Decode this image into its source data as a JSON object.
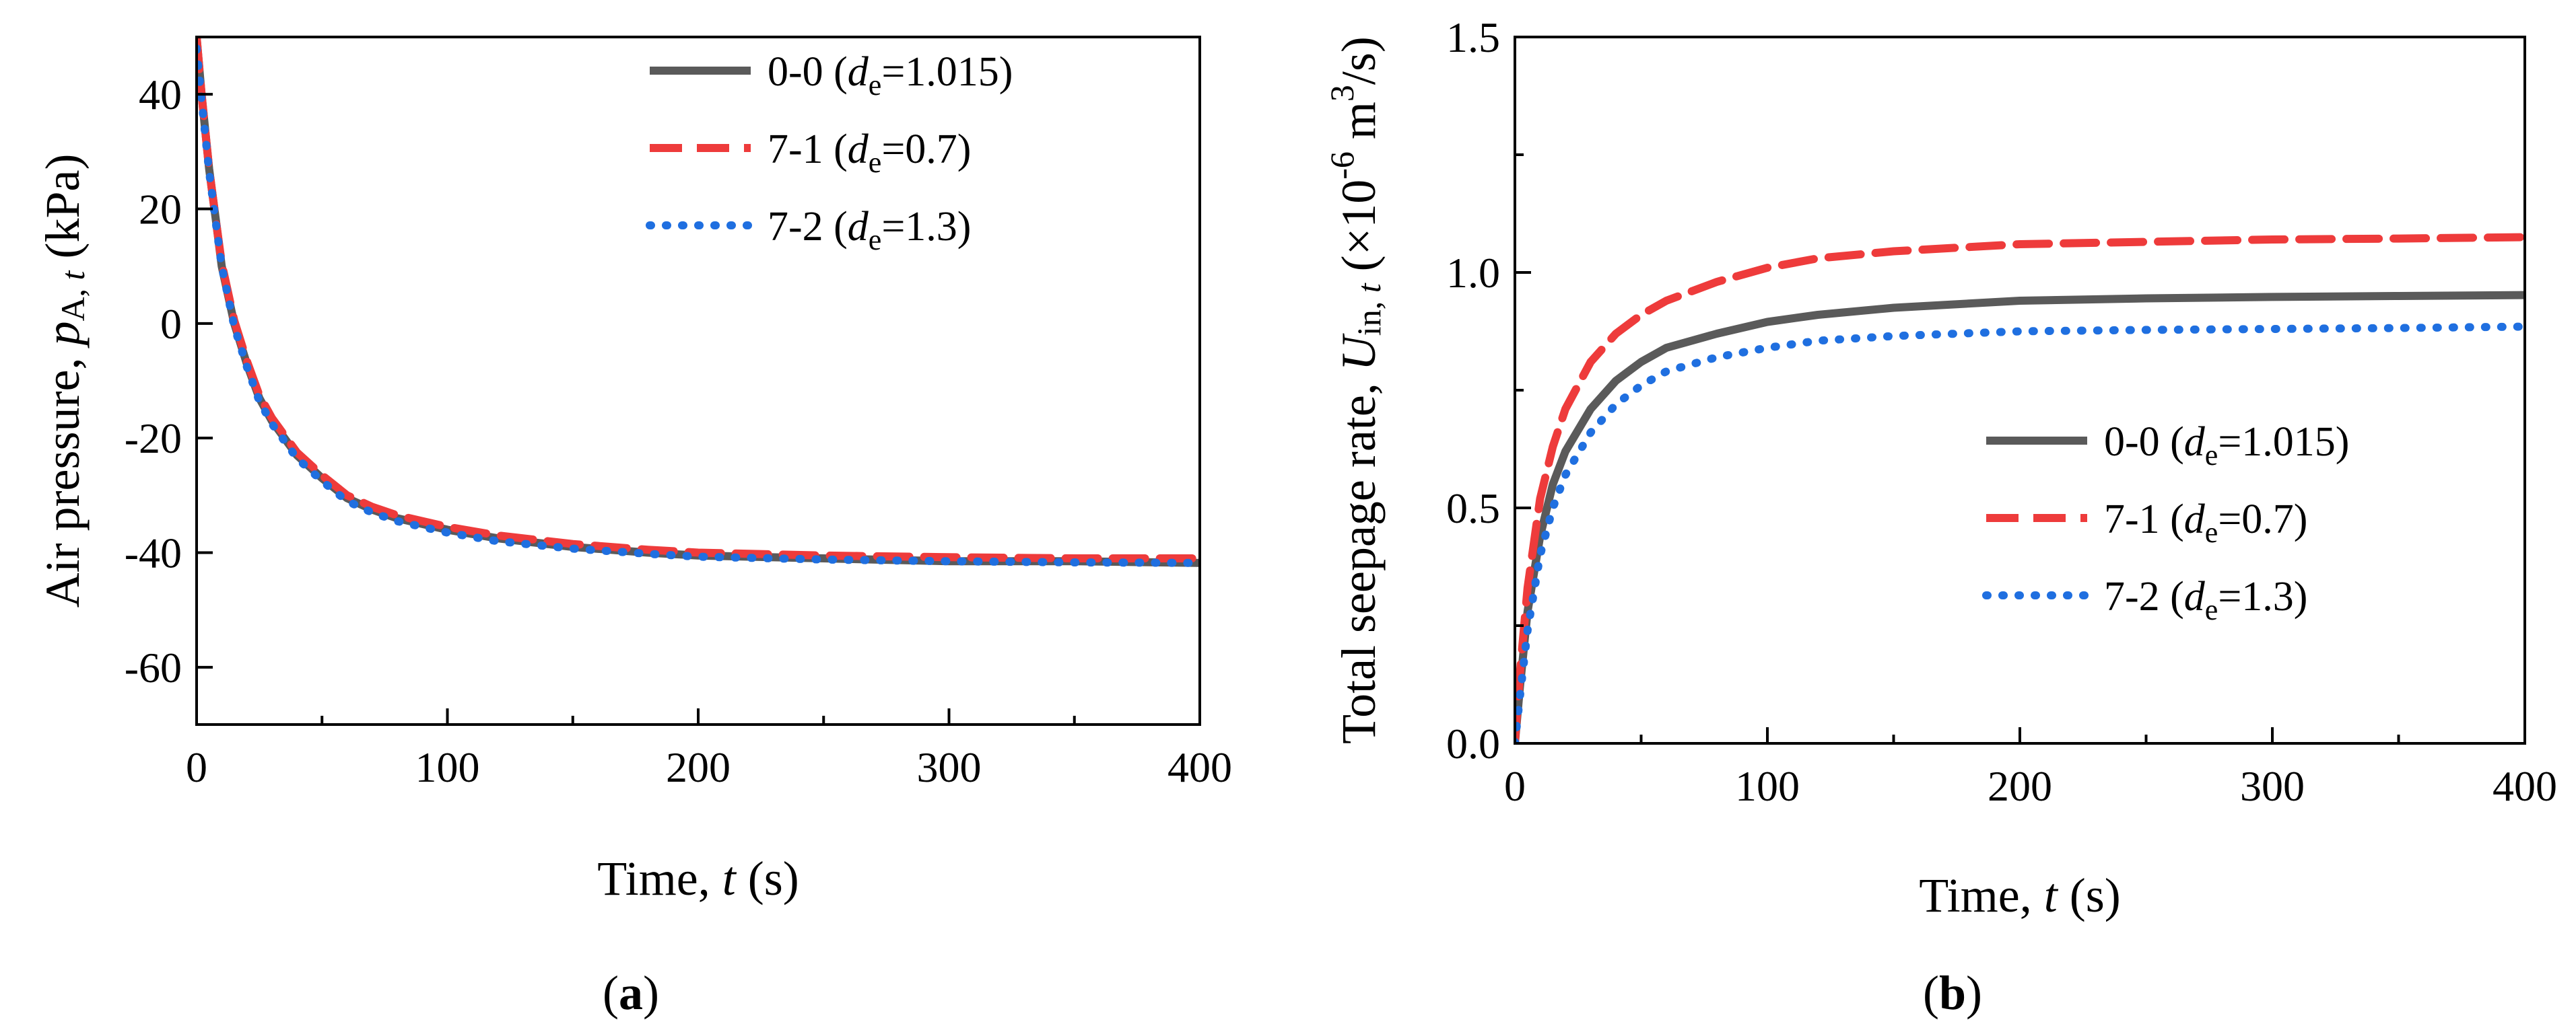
{
  "figure": {
    "panels": [
      {
        "caption_id": "a",
        "chart_data": {
          "type": "line",
          "title": "",
          "xlabel": "Time, t (s)",
          "ylabel": "Air pressure, pA, t (kPa)",
          "xlim": [
            0,
            400
          ],
          "ylim": [
            -70,
            50
          ],
          "xticks": [
            0,
            100,
            200,
            300,
            400
          ],
          "yticks": [
            40,
            20,
            0,
            -20,
            -40,
            -60
          ],
          "legend_position": "top-right",
          "series": [
            {
              "name": "0-0",
              "label_prefix": "0-0 (",
              "label_sym": "d",
              "label_sub": "e",
              "label_value": "=1.015)",
              "color": "#5a5a5a",
              "style": "solid",
              "x": [
                0,
                2,
                5,
                8,
                10,
                15,
                20,
                25,
                30,
                40,
                50,
                60,
                70,
                80,
                100,
                120,
                150,
                180,
                200,
                250,
                300,
                350,
                400
              ],
              "y": [
                50,
                40,
                27,
                17,
                10,
                0,
                -7,
                -13,
                -17,
                -23,
                -27,
                -30.5,
                -32.5,
                -34,
                -36,
                -37.5,
                -39,
                -40,
                -40.5,
                -41,
                -41.5,
                -41.5,
                -41.8
              ]
            },
            {
              "name": "7-1",
              "label_prefix": "7-1 (",
              "label_sym": "d",
              "label_sub": "e",
              "label_value": "=0.7)",
              "color": "#ee3b3b",
              "style": "dashed",
              "x": [
                0,
                2,
                5,
                8,
                10,
                15,
                20,
                25,
                30,
                40,
                50,
                60,
                70,
                80,
                100,
                120,
                150,
                180,
                200,
                250,
                300,
                350,
                400
              ],
              "y": [
                50,
                40,
                27,
                17,
                10.5,
                0.5,
                -6.5,
                -12.5,
                -16.5,
                -22.5,
                -26.5,
                -30,
                -32,
                -33.5,
                -35.5,
                -37,
                -38.5,
                -39.5,
                -40,
                -40.5,
                -40.8,
                -41,
                -41
              ]
            },
            {
              "name": "7-2",
              "label_prefix": "7-2 (",
              "label_sym": "d",
              "label_sub": "e",
              "label_value": "=1.3)",
              "color": "#1f6fe0",
              "style": "dotted",
              "x": [
                0,
                2,
                5,
                8,
                10,
                15,
                20,
                25,
                30,
                40,
                50,
                60,
                70,
                80,
                100,
                120,
                150,
                180,
                200,
                250,
                300,
                350,
                400
              ],
              "y": [
                48,
                39,
                26.5,
                16.5,
                10,
                -0.5,
                -7.5,
                -13.5,
                -17.5,
                -23.5,
                -27.5,
                -31,
                -33,
                -34.5,
                -36.5,
                -38,
                -39.3,
                -40.2,
                -40.7,
                -41.2,
                -41.5,
                -41.7,
                -41.8
              ]
            }
          ]
        }
      },
      {
        "caption_id": "b",
        "chart_data": {
          "type": "line",
          "title": "",
          "xlabel": "Time, t (s)",
          "ylabel": "Total seepage rate, Uin, t (×10-6 m3/s)",
          "xlim": [
            0,
            400
          ],
          "ylim": [
            0,
            1.5
          ],
          "xticks": [
            0,
            100,
            200,
            300,
            400
          ],
          "yticks": [
            0.0,
            0.5,
            1.0,
            1.5
          ],
          "legend_position": "lower-right",
          "series": [
            {
              "name": "0-0",
              "label_prefix": "0-0 (",
              "label_sym": "d",
              "label_sub": "e",
              "label_value": "=1.015)",
              "color": "#5a5a5a",
              "style": "solid",
              "x": [
                0,
                2,
                5,
                10,
                15,
                20,
                30,
                40,
                50,
                60,
                80,
                100,
                120,
                150,
                200,
                250,
                300,
                350,
                400
              ],
              "y": [
                0,
                0.12,
                0.28,
                0.44,
                0.55,
                0.62,
                0.71,
                0.77,
                0.81,
                0.84,
                0.87,
                0.895,
                0.91,
                0.925,
                0.94,
                0.945,
                0.948,
                0.95,
                0.952
              ]
            },
            {
              "name": "7-1",
              "label_prefix": "7-1 (",
              "label_sym": "d",
              "label_sub": "e",
              "label_value": "=0.7)",
              "color": "#ee3b3b",
              "style": "dashed",
              "x": [
                0,
                2,
                5,
                10,
                15,
                20,
                30,
                40,
                50,
                60,
                80,
                100,
                120,
                150,
                200,
                250,
                300,
                350,
                400
              ],
              "y": [
                0,
                0.15,
                0.33,
                0.52,
                0.63,
                0.71,
                0.81,
                0.87,
                0.91,
                0.94,
                0.98,
                1.01,
                1.03,
                1.045,
                1.06,
                1.065,
                1.07,
                1.072,
                1.075
              ]
            },
            {
              "name": "7-2",
              "label_prefix": "7-2 (",
              "label_sym": "d",
              "label_sub": "e",
              "label_value": "=1.3)",
              "color": "#1f6fe0",
              "style": "dotted",
              "x": [
                0,
                2,
                5,
                10,
                15,
                20,
                30,
                40,
                50,
                60,
                80,
                100,
                120,
                150,
                200,
                250,
                300,
                350,
                400
              ],
              "y": [
                0,
                0.1,
                0.24,
                0.4,
                0.5,
                0.57,
                0.66,
                0.72,
                0.76,
                0.79,
                0.82,
                0.84,
                0.855,
                0.865,
                0.875,
                0.878,
                0.88,
                0.882,
                0.885
              ]
            }
          ]
        }
      }
    ]
  }
}
